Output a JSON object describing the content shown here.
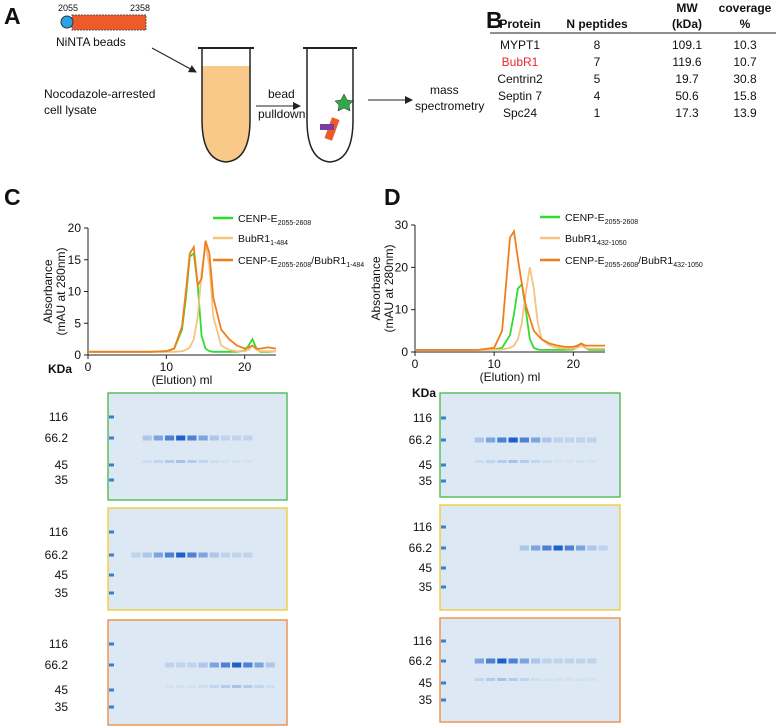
{
  "panel_a": {
    "letter": "A",
    "start": "2055",
    "end": "2358",
    "beads": "NiNTA beads",
    "lysate": [
      "Nocodazole-arrested",
      "cell lysate"
    ],
    "step": [
      "bead",
      "pulldown"
    ],
    "readout": [
      "mass",
      "spectrometry"
    ]
  },
  "panel_b": {
    "letter": "B",
    "headers": [
      [
        "Protein"
      ],
      [
        "N peptides"
      ],
      [
        "MW",
        "(kDa)"
      ],
      [
        "coverage",
        "%"
      ]
    ],
    "rows": [
      [
        "MYPT1",
        8,
        109.1,
        10.3
      ],
      [
        "BubR1",
        7,
        119.6,
        10.7
      ],
      [
        "Centrin2",
        5,
        19.7,
        30.8
      ],
      [
        "Septin 7",
        4,
        50.6,
        15.8
      ],
      [
        "Spc24",
        1,
        17.3,
        13.9
      ]
    ]
  },
  "panel_letters": [
    "C",
    "D"
  ],
  "chart_data": [
    {
      "type": "line",
      "ylabel": [
        "Absorbance",
        "(mAU at 280nm)"
      ],
      "xlabel": "(Elution) ml",
      "xlim": [
        0,
        24
      ],
      "ylim": [
        0,
        20
      ],
      "xticks": [
        0,
        10,
        20
      ],
      "yticks": [
        0,
        5,
        10,
        15,
        20
      ],
      "x": [
        0,
        2,
        4,
        6,
        8,
        10,
        11,
        12,
        12.5,
        13,
        13.5,
        14,
        14.5,
        15,
        15.5,
        16,
        17,
        18,
        19,
        20,
        20.5,
        21,
        21.5,
        22,
        23,
        24
      ],
      "series": [
        {
          "name_parts": [
            "CENP-E",
            "2055-2608"
          ],
          "color": "#2fdc2f",
          "values": [
            0.5,
            0.5,
            0.5,
            0.5,
            0.5,
            0.6,
            1.0,
            4,
            9,
            15.5,
            16,
            11,
            3,
            1,
            0.6,
            0.5,
            0.5,
            0.5,
            0.5,
            0.7,
            1.5,
            2.5,
            1,
            0.5,
            0.5,
            0.6
          ]
        },
        {
          "name_parts": [
            "BubR1",
            "1-484"
          ],
          "color": "#f7c27f",
          "values": [
            0.5,
            0.5,
            0.5,
            0.5,
            0.5,
            0.5,
            0.5,
            0.6,
            0.8,
            1.2,
            2.5,
            6,
            13,
            17.5,
            14,
            6,
            1.5,
            0.8,
            0.6,
            0.6,
            0.8,
            1.5,
            0.8,
            0.6,
            0.6,
            0.6
          ]
        },
        {
          "name_parts": [
            "CENP-E",
            "2055-2608",
            "/BubR1",
            "1-484"
          ],
          "color": "#f07e1c",
          "values": [
            0.5,
            0.5,
            0.5,
            0.5,
            0.5,
            0.6,
            1,
            4.5,
            10,
            16,
            17,
            11,
            12,
            18,
            16,
            9,
            4,
            2.5,
            1.5,
            1,
            1.2,
            1.5,
            1,
            1,
            1.2,
            1
          ]
        }
      ],
      "gel_unit": "KDa",
      "gel_markers": [
        "116",
        "66.2",
        "45",
        "35"
      ]
    },
    {
      "type": "line",
      "ylabel": [
        "Absorbance",
        "(mAU at 280nm)"
      ],
      "xlabel": "(Elution) ml",
      "xlim": [
        0,
        24
      ],
      "ylim": [
        0,
        30
      ],
      "xticks": [
        0,
        10,
        20
      ],
      "yticks": [
        0,
        10,
        20,
        30
      ],
      "x": [
        0,
        2,
        4,
        6,
        8,
        10,
        11,
        12,
        12.5,
        13,
        13.5,
        14,
        14.5,
        15,
        15.5,
        16,
        17,
        18,
        19,
        20,
        20.5,
        21,
        21.5,
        22,
        23,
        24
      ],
      "series": [
        {
          "name_parts": [
            "CENP-E",
            "2055-2608"
          ],
          "color": "#2fdc2f",
          "values": [
            0.5,
            0.5,
            0.5,
            0.5,
            0.5,
            0.6,
            1,
            4,
            9,
            15,
            16,
            10,
            3,
            1,
            0.6,
            0.5,
            0.5,
            0.5,
            0.5,
            0.6,
            1.2,
            2,
            1,
            0.5,
            0.5,
            0.5
          ]
        },
        {
          "name_parts": [
            "BubR1",
            "432-1050"
          ],
          "color": "#f7c27f",
          "values": [
            0.5,
            0.5,
            0.5,
            0.5,
            0.5,
            0.5,
            0.6,
            1,
            1.5,
            3,
            7,
            14,
            20,
            15,
            7,
            3,
            1.5,
            1,
            0.8,
            0.8,
            1,
            1.5,
            1,
            0.8,
            0.8,
            0.8
          ]
        },
        {
          "name_parts": [
            "CENP-E",
            "2055-2608",
            "/BubR1",
            "432-1050"
          ],
          "color": "#f07e1c",
          "values": [
            0.5,
            0.5,
            0.5,
            0.5,
            0.5,
            1,
            5,
            27,
            28.5,
            22,
            16,
            11,
            8,
            5,
            4,
            3,
            2,
            1.5,
            1.2,
            1.2,
            1.5,
            2,
            1.5,
            1.5,
            1.5,
            1.5
          ]
        }
      ],
      "gel_unit": "KDa",
      "gel_markers": [
        "116",
        "66.2",
        "45",
        "35"
      ]
    }
  ]
}
